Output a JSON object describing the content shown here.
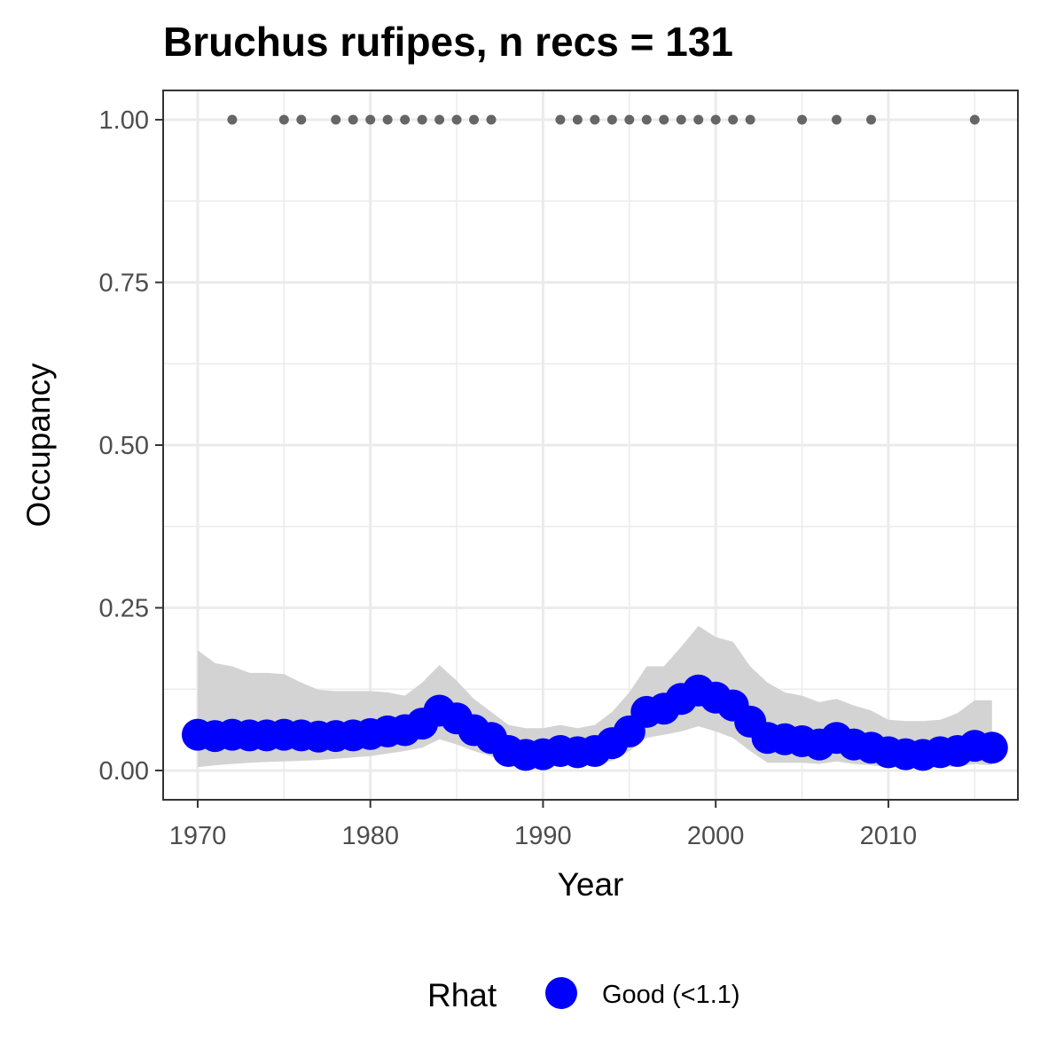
{
  "chart_data": {
    "type": "line",
    "title": "Bruchus rufipes, n recs = 131",
    "xlabel": "Year",
    "ylabel": "Occupancy",
    "xlim": [
      1968,
      2017.5
    ],
    "ylim": [
      -0.045,
      1.045
    ],
    "x_ticks": [
      1970,
      1980,
      1990,
      2000,
      2010
    ],
    "x_tick_labels": [
      "1970",
      "1980",
      "1990",
      "2000",
      "2010"
    ],
    "y_ticks": [
      0,
      0.25,
      0.5,
      0.75,
      1.0
    ],
    "y_tick_labels": [
      "0.00",
      "0.25",
      "0.50",
      "0.75",
      "1.00"
    ],
    "grid": true,
    "legend": {
      "title": "Rhat",
      "position": "bottom",
      "entries": [
        {
          "label": "Good (<1.1)",
          "color": "#0000ff"
        }
      ]
    },
    "colors": {
      "series": "#0000ff",
      "ribbon": "#d3d3d3",
      "records": "#666666",
      "grid": "#ebebeb",
      "border": "#333333"
    },
    "series": [
      {
        "name": "Good (<1.1)",
        "x": [
          1970,
          1971,
          1972,
          1973,
          1974,
          1975,
          1976,
          1977,
          1978,
          1979,
          1980,
          1981,
          1982,
          1983,
          1984,
          1985,
          1986,
          1987,
          1988,
          1989,
          1990,
          1991,
          1992,
          1993,
          1994,
          1995,
          1996,
          1997,
          1998,
          1999,
          2000,
          2001,
          2002,
          2003,
          2004,
          2005,
          2006,
          2007,
          2008,
          2009,
          2010,
          2011,
          2012,
          2013,
          2014,
          2015,
          2016
        ],
        "values": [
          0.055,
          0.053,
          0.055,
          0.054,
          0.054,
          0.055,
          0.054,
          0.052,
          0.053,
          0.054,
          0.056,
          0.06,
          0.062,
          0.072,
          0.092,
          0.08,
          0.062,
          0.05,
          0.03,
          0.024,
          0.025,
          0.03,
          0.028,
          0.03,
          0.042,
          0.06,
          0.09,
          0.095,
          0.11,
          0.123,
          0.112,
          0.1,
          0.075,
          0.05,
          0.048,
          0.045,
          0.04,
          0.05,
          0.04,
          0.035,
          0.028,
          0.025,
          0.024,
          0.028,
          0.03,
          0.038,
          0.035
        ],
        "lower": [
          0.005,
          0.008,
          0.01,
          0.012,
          0.013,
          0.014,
          0.015,
          0.016,
          0.018,
          0.02,
          0.022,
          0.026,
          0.03,
          0.035,
          0.048,
          0.04,
          0.03,
          0.022,
          0.01,
          0.006,
          0.006,
          0.008,
          0.007,
          0.008,
          0.015,
          0.03,
          0.05,
          0.055,
          0.06,
          0.068,
          0.06,
          0.05,
          0.03,
          0.012,
          0.012,
          0.012,
          0.01,
          0.014,
          0.01,
          0.008,
          0.005,
          0.004,
          0.004,
          0.005,
          0.006,
          0.01,
          0.008
        ],
        "upper": [
          0.185,
          0.165,
          0.16,
          0.15,
          0.15,
          0.148,
          0.135,
          0.124,
          0.122,
          0.122,
          0.122,
          0.12,
          0.115,
          0.135,
          0.162,
          0.138,
          0.11,
          0.09,
          0.07,
          0.065,
          0.065,
          0.07,
          0.065,
          0.07,
          0.09,
          0.12,
          0.16,
          0.16,
          0.19,
          0.222,
          0.205,
          0.198,
          0.16,
          0.135,
          0.12,
          0.115,
          0.105,
          0.11,
          0.1,
          0.092,
          0.078,
          0.076,
          0.076,
          0.078,
          0.088,
          0.108,
          0.108
        ]
      },
      {
        "name": "records",
        "x": [
          1972,
          1975,
          1976,
          1978,
          1979,
          1980,
          1981,
          1982,
          1983,
          1984,
          1985,
          1986,
          1987,
          1991,
          1992,
          1993,
          1994,
          1995,
          1996,
          1997,
          1998,
          1999,
          2000,
          2001,
          2002,
          2005,
          2007,
          2009,
          2015
        ],
        "values": [
          1,
          1,
          1,
          1,
          1,
          1,
          1,
          1,
          1,
          1,
          1,
          1,
          1,
          1,
          1,
          1,
          1,
          1,
          1,
          1,
          1,
          1,
          1,
          1,
          1,
          1,
          1,
          1,
          1
        ]
      }
    ]
  }
}
